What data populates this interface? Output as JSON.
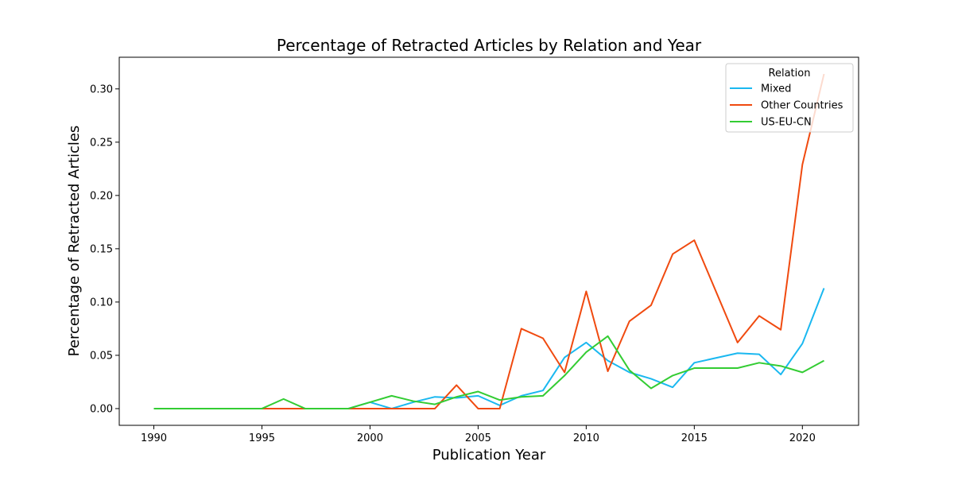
{
  "chart_data": {
    "type": "line",
    "title": "Percentage of Retracted Articles by Relation and Year",
    "xlabel": "Publication Year",
    "ylabel": "Percentage of Retracted Articles",
    "xlim": [
      1988.4,
      2022.6
    ],
    "ylim": [
      -0.0157,
      0.3297
    ],
    "x_ticks": [
      1990,
      1995,
      2000,
      2005,
      2010,
      2015,
      2020
    ],
    "y_ticks": [
      0.0,
      0.05,
      0.1,
      0.15,
      0.2,
      0.25,
      0.3
    ],
    "y_tick_labels": [
      "0.00",
      "0.05",
      "0.10",
      "0.15",
      "0.20",
      "0.25",
      "0.30"
    ],
    "grid": false,
    "legend": {
      "title": "Relation",
      "placement": "top-right"
    },
    "series": [
      {
        "name": "Mixed",
        "color": "#1ab8f0",
        "x": [
          1990,
          1995,
          1999,
          2000,
          2001,
          2002,
          2003,
          2004,
          2005,
          2006,
          2007,
          2008,
          2009,
          2010,
          2011,
          2012,
          2013,
          2014,
          2015,
          2017,
          2018,
          2019,
          2020,
          2021
        ],
        "y": [
          0.0,
          0.0,
          0.0,
          0.006,
          0.0,
          0.006,
          0.011,
          0.01,
          0.012,
          0.003,
          0.012,
          0.017,
          0.048,
          0.062,
          0.045,
          0.034,
          0.028,
          0.02,
          0.043,
          0.052,
          0.051,
          0.032,
          0.061,
          0.113
        ]
      },
      {
        "name": "Other Countries",
        "color": "#f04a0f",
        "x": [
          1995,
          2003,
          2004,
          2005,
          2006,
          2007,
          2008,
          2009,
          2010,
          2011,
          2012,
          2013,
          2014,
          2015,
          2017,
          2018,
          2019,
          2020,
          2021
        ],
        "y": [
          0.0,
          0.0,
          0.022,
          0.0,
          0.0,
          0.075,
          0.066,
          0.034,
          0.11,
          0.035,
          0.082,
          0.097,
          0.145,
          0.158,
          0.062,
          0.087,
          0.074,
          0.229,
          0.314
        ]
      },
      {
        "name": "US-EU-CN",
        "color": "#33cc33",
        "x": [
          1990,
          1995,
          1996,
          1997,
          1999,
          2000,
          2001,
          2002,
          2003,
          2004,
          2005,
          2006,
          2007,
          2008,
          2009,
          2010,
          2011,
          2012,
          2013,
          2014,
          2015,
          2017,
          2018,
          2019,
          2020,
          2021
        ],
        "y": [
          0.0,
          0.0,
          0.009,
          0.0,
          0.0,
          0.006,
          0.012,
          0.007,
          0.004,
          0.011,
          0.016,
          0.008,
          0.011,
          0.012,
          0.031,
          0.053,
          0.068,
          0.036,
          0.019,
          0.031,
          0.038,
          0.038,
          0.043,
          0.04,
          0.034,
          0.045
        ]
      }
    ]
  }
}
